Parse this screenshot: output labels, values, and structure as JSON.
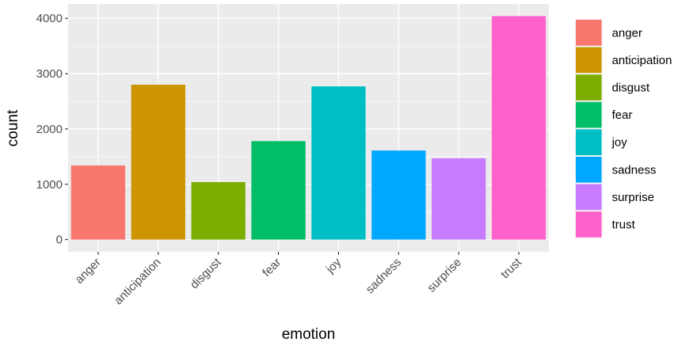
{
  "chart_data": {
    "type": "bar",
    "title": "",
    "xlabel": "emotion",
    "ylabel": "count",
    "categories": [
      "anger",
      "anticipation",
      "disgust",
      "fear",
      "joy",
      "sadness",
      "surprise",
      "trust"
    ],
    "values": [
      1340,
      2800,
      1040,
      1780,
      2770,
      1610,
      1470,
      4040
    ],
    "colors": [
      "#F8766D",
      "#CD9600",
      "#7CAE00",
      "#00BE67",
      "#00BFC4",
      "#00A9FF",
      "#C77CFF",
      "#FF61CC"
    ],
    "ylim": [
      -220,
      4260
    ],
    "yticks": [
      0,
      1000,
      2000,
      3000,
      4000
    ],
    "ytick_labels": [
      "0",
      "1000",
      "2000",
      "3000",
      "4000"
    ],
    "grid": true,
    "panel_background": "#EBEBEB",
    "grid_color": "#FFFFFF",
    "legend": {
      "position": "right",
      "entries": [
        "anger",
        "anticipation",
        "disgust",
        "fear",
        "joy",
        "sadness",
        "surprise",
        "trust"
      ]
    }
  }
}
